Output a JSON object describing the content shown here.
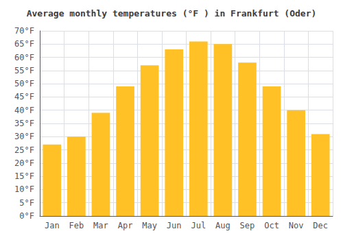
{
  "chart_data": {
    "type": "bar",
    "title": "Average monthly temperatures (°F ) in Frankfurt (Oder)",
    "categories": [
      "Jan",
      "Feb",
      "Mar",
      "Apr",
      "May",
      "Jun",
      "Jul",
      "Aug",
      "Sep",
      "Oct",
      "Nov",
      "Dec"
    ],
    "values": [
      27,
      30,
      39,
      49,
      57,
      63,
      66,
      65,
      58,
      49,
      40,
      31
    ],
    "color": "#FFC125",
    "ylim": [
      0,
      70
    ],
    "yticks": [
      {
        "value": 0,
        "label": "0°F"
      },
      {
        "value": 5,
        "label": "5°F"
      },
      {
        "value": 10,
        "label": "10°F"
      },
      {
        "value": 15,
        "label": "15°F"
      },
      {
        "value": 20,
        "label": "20°F"
      },
      {
        "value": 25,
        "label": "25°F"
      },
      {
        "value": 30,
        "label": "30°F"
      },
      {
        "value": 35,
        "label": "35°F"
      },
      {
        "value": 40,
        "label": "40°F"
      },
      {
        "value": 45,
        "label": "45°F"
      },
      {
        "value": 50,
        "label": "50°F"
      },
      {
        "value": 55,
        "label": "55°F"
      },
      {
        "value": 60,
        "label": "60°F"
      },
      {
        "value": 65,
        "label": "65°F"
      },
      {
        "value": 70,
        "label": "70°F"
      }
    ],
    "grid": true
  }
}
